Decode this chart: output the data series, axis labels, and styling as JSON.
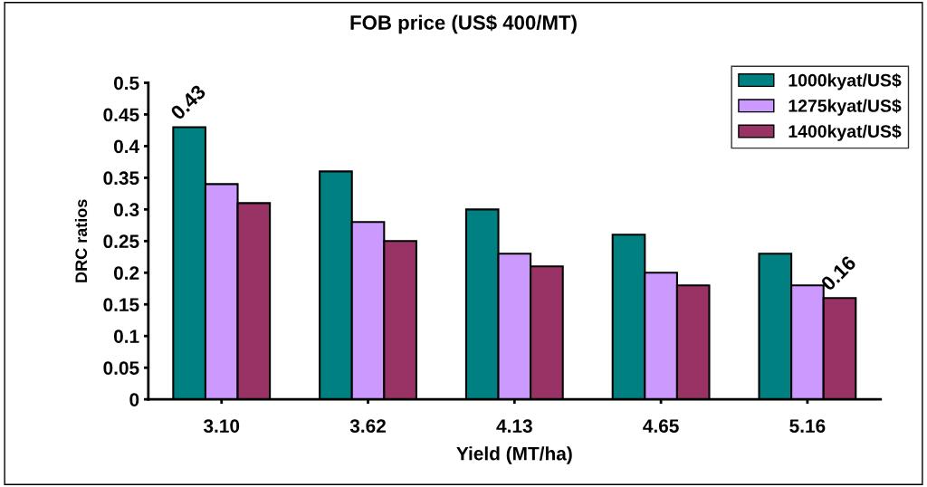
{
  "chart_data": {
    "type": "bar",
    "title": "FOB price (US$ 400/MT)",
    "xlabel": "Yield (MT/ha)",
    "ylabel": "DRC ratios",
    "categories": [
      "3.10",
      "3.62",
      "4.13",
      "4.65",
      "5.16"
    ],
    "series": [
      {
        "name": "1000kyat/US$",
        "color": "#008080",
        "values": [
          0.43,
          0.36,
          0.3,
          0.26,
          0.23
        ],
        "value_labels": [
          "0.43",
          null,
          null,
          null,
          null
        ]
      },
      {
        "name": "1275kyat/US$",
        "color": "#cc99ff",
        "values": [
          0.34,
          0.28,
          0.23,
          0.2,
          0.18
        ]
      },
      {
        "name": "1400kyat/US$",
        "color": "#993366",
        "values": [
          0.31,
          0.25,
          0.21,
          0.18,
          0.16
        ],
        "value_labels": [
          null,
          null,
          null,
          null,
          "0.16"
        ]
      }
    ],
    "ylim": [
      0,
      0.5
    ],
    "yticks": [
      0,
      0.05,
      0.1,
      0.15,
      0.2,
      0.25,
      0.3,
      0.35,
      0.4,
      0.45,
      0.5
    ],
    "legend": "top right",
    "grid": false
  }
}
